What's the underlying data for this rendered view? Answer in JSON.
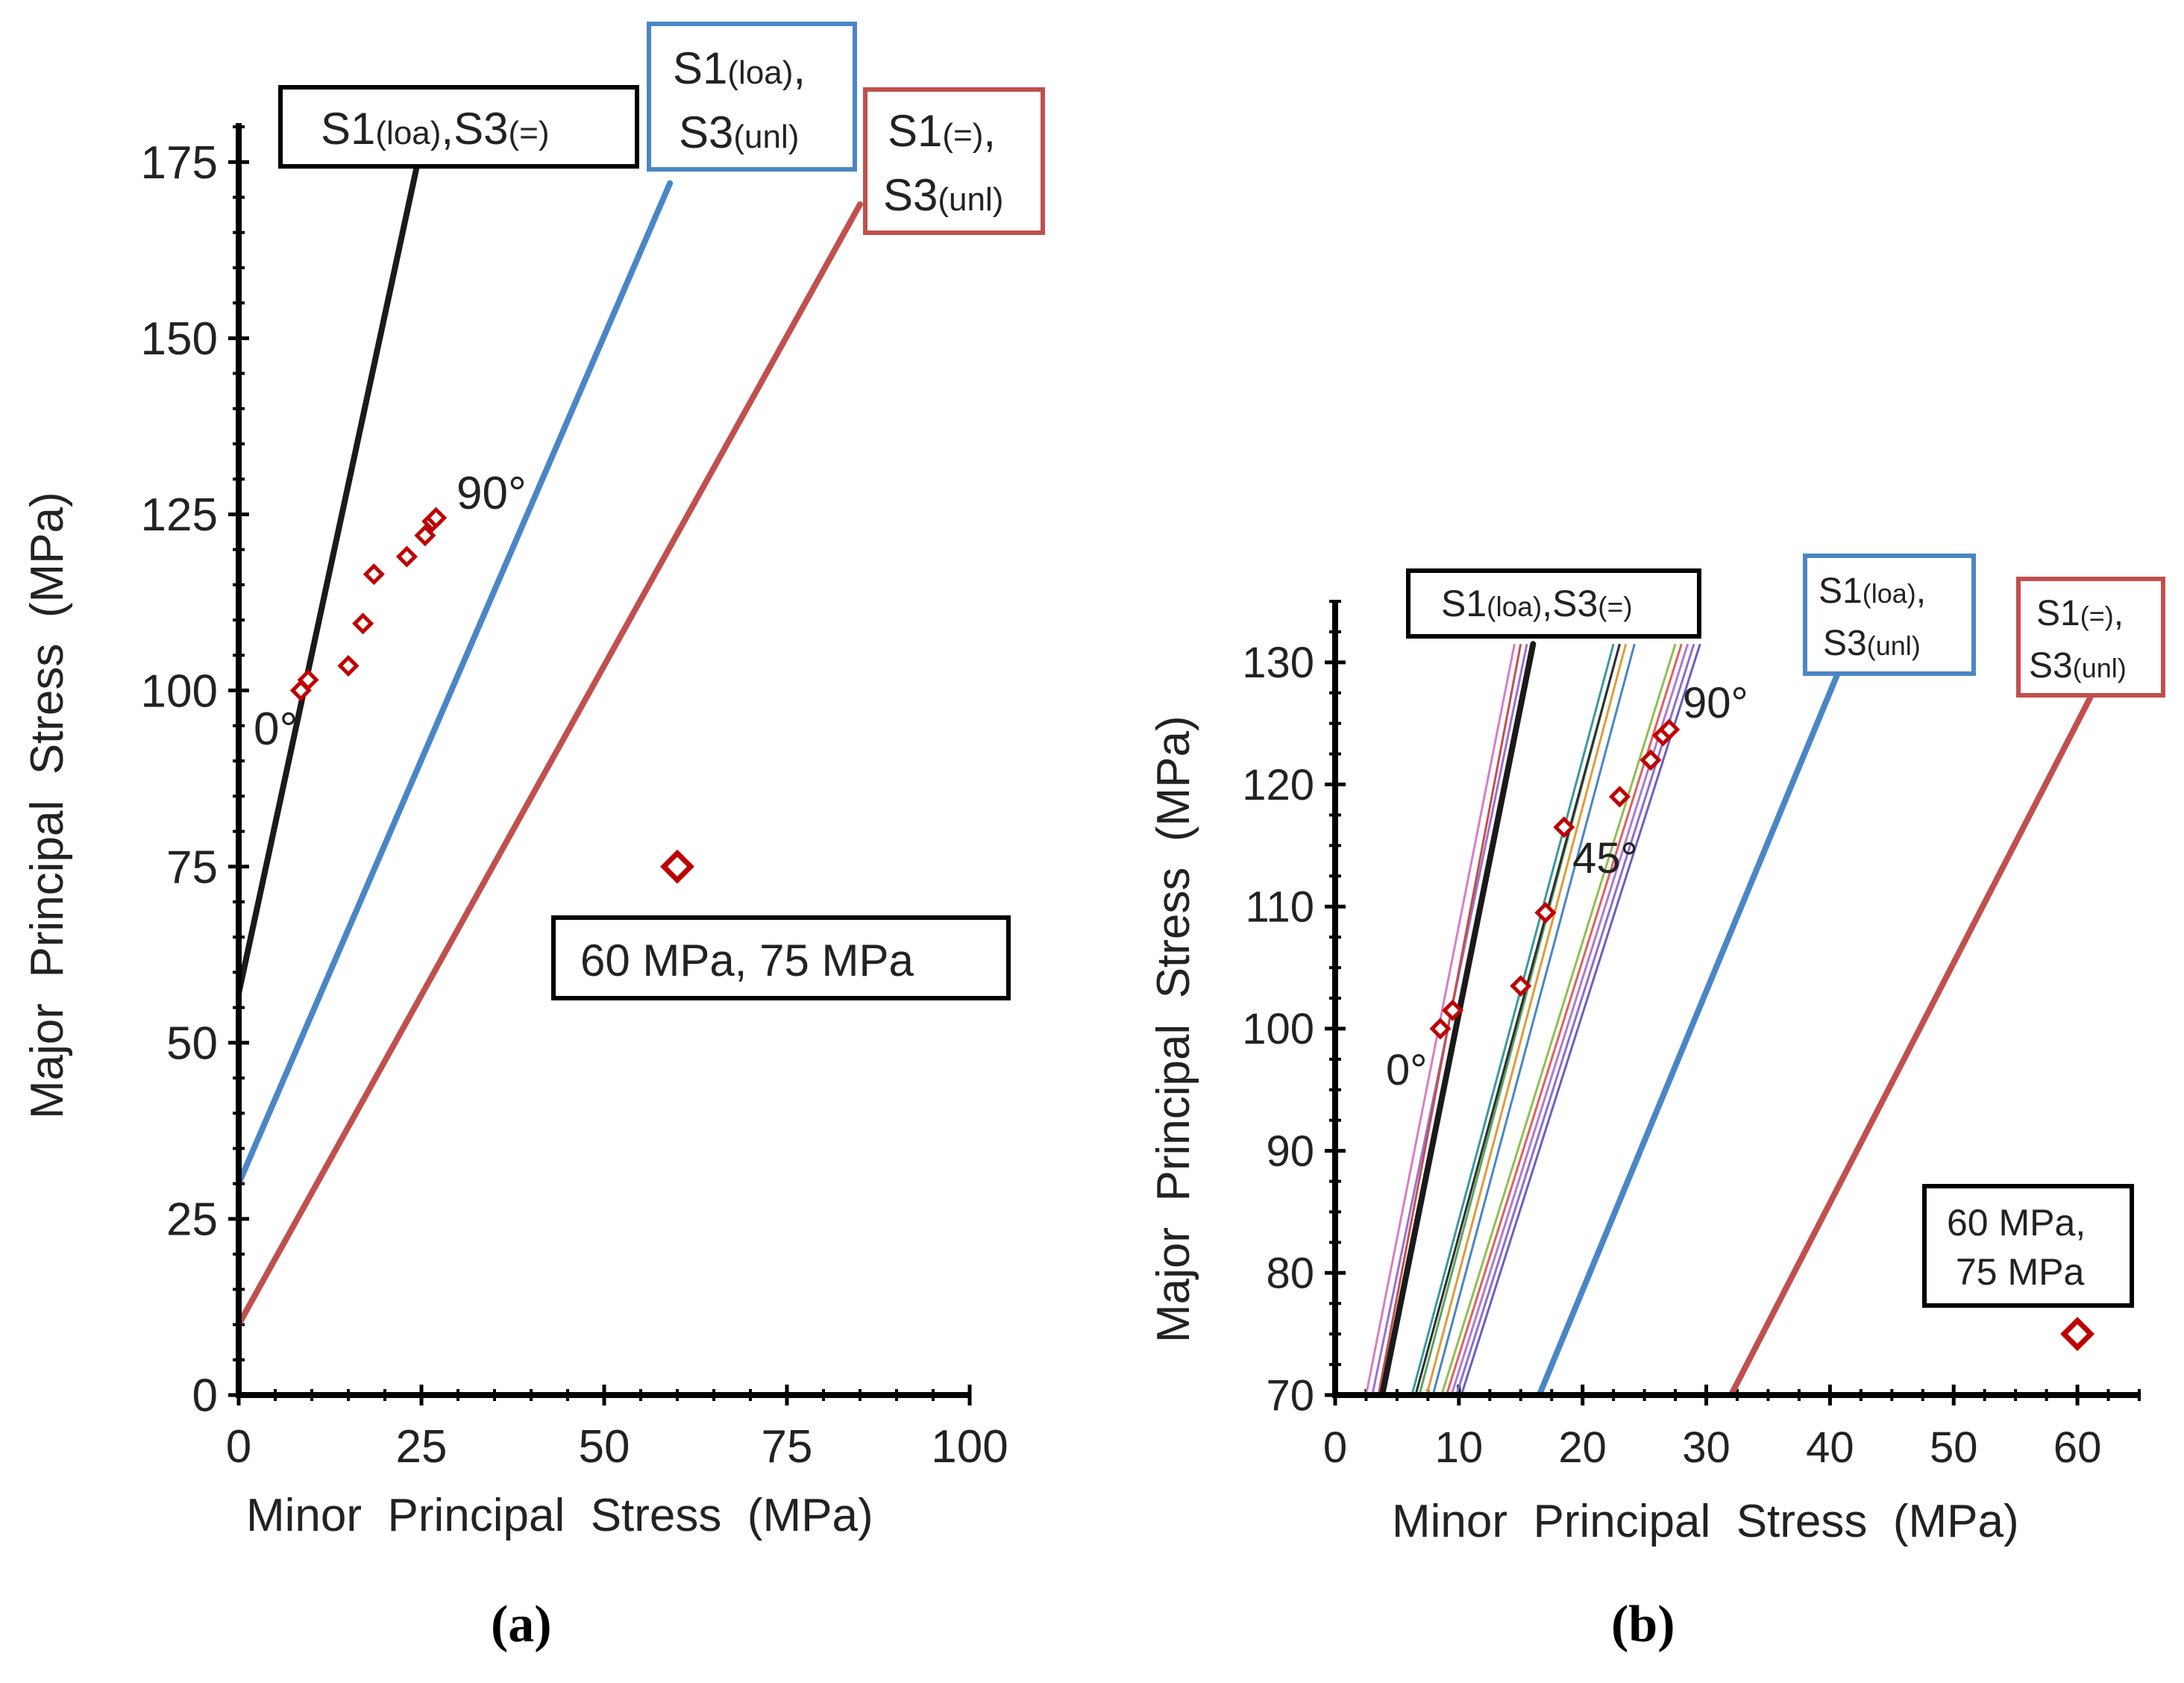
{
  "figure": {
    "label_a": "(a)",
    "label_b": "(b)"
  },
  "chart_data": [
    {
      "id": "a",
      "type": "line",
      "xlabel": "Minor  Principal  Stress  (MPa)",
      "ylabel": "Major  Principal  Stress  (MPa)",
      "xlim": [
        0,
        100
      ],
      "ylim": [
        0,
        180
      ],
      "xticks": [
        "0",
        "25",
        "50",
        "75",
        "100"
      ],
      "yticks": [
        "0",
        "25",
        "50",
        "75",
        "100",
        "125",
        "150",
        "175"
      ],
      "xtick_values": [
        0,
        25,
        50,
        75,
        100
      ],
      "ytick_values": [
        0,
        25,
        50,
        75,
        100,
        125,
        150,
        175
      ],
      "series": [
        {
          "name": "S1(loa),S3(=)",
          "color": "#1a1a1a",
          "x": [
            0,
            24.5
          ],
          "y": [
            57,
            175
          ]
        },
        {
          "name": "S1(loa), S3(unl)",
          "color": "#4a86c6",
          "x": [
            0,
            59
          ],
          "y": [
            30,
            172
          ]
        },
        {
          "name": "S1(=), S3(unl)",
          "color": "#c0504d",
          "x": [
            0,
            85
          ],
          "y": [
            10,
            169
          ]
        }
      ],
      "legend_boxes": [
        {
          "main1": "S1",
          "sub1": "(loa)",
          "main2": ",S3",
          "sub2": "(=)",
          "two_lines": false,
          "color": "#000000"
        },
        {
          "main1": "S1",
          "sub1": "(loa)",
          "line1_tail": ",",
          "main2": "S3",
          "sub2": "(unl)",
          "two_lines": true,
          "color": "#4a86c6"
        },
        {
          "main1": "S1",
          "sub1": "(=)",
          "line1_tail": ",",
          "main2": "S3",
          "sub2": "(unl)",
          "two_lines": true,
          "color": "#c0504d"
        }
      ],
      "points": {
        "color": "#c00000",
        "x": [
          8.5,
          9.5,
          15,
          17,
          18.5,
          23,
          25.5,
          26.5,
          27
        ],
        "y": [
          100,
          101.5,
          103.5,
          109.5,
          116.5,
          119,
          122,
          124,
          124.5
        ]
      },
      "special_point": {
        "x": 60,
        "y": 75,
        "label": "60 MPa, 75 MPa"
      },
      "annotations": [
        "0°",
        "90°"
      ]
    },
    {
      "id": "b",
      "type": "line",
      "xlabel": "Minor  Principal  Stress  (MPa)",
      "ylabel": "Major  Principal  Stress  (MPa)",
      "xlim": [
        0,
        65
      ],
      "ylim": [
        70,
        135
      ],
      "xticks": [
        "0",
        "10",
        "20",
        "30",
        "40",
        "50",
        "60"
      ],
      "yticks": [
        "70",
        "80",
        "90",
        "100",
        "110",
        "120",
        "130"
      ],
      "xtick_values": [
        0,
        10,
        20,
        30,
        40,
        50,
        60
      ],
      "ytick_values": [
        70,
        80,
        90,
        100,
        110,
        120,
        130
      ],
      "series": [
        {
          "name": "S1(loa),S3(=)",
          "color": "#1a1a1a",
          "x": [
            3.8,
            16
          ],
          "y": [
            70,
            131.5
          ]
        },
        {
          "name": "S1(loa), S3(unl)",
          "color": "#4a86c6",
          "x": [
            16.5,
            41
          ],
          "y": [
            70,
            130
          ]
        },
        {
          "name": "S1(=), S3(unl)",
          "color": "#c0504d",
          "x": [
            32,
            62
          ],
          "y": [
            70,
            129
          ]
        }
      ],
      "fan_lines": [
        {
          "color": "#d77ec7",
          "x": [
            2.5,
            14.5
          ],
          "y": [
            70,
            131.5
          ]
        },
        {
          "color": "#9e6fd0",
          "x": [
            3,
            15.5
          ],
          "y": [
            70,
            131.5
          ]
        },
        {
          "color": "#c0504d",
          "x": [
            3.5,
            15
          ],
          "y": [
            70,
            131.5
          ]
        },
        {
          "color": "#3a9a9a",
          "x": [
            6.2,
            22.5
          ],
          "y": [
            70,
            131.5
          ]
        },
        {
          "color": "#5ba55b",
          "x": [
            6.8,
            23
          ],
          "y": [
            70,
            131.5
          ]
        },
        {
          "color": "#e09b3a",
          "x": [
            7.4,
            23.5
          ],
          "y": [
            70,
            131.5
          ]
        },
        {
          "color": "#4a86c6",
          "x": [
            7.9,
            24.2
          ],
          "y": [
            70,
            131.5
          ]
        },
        {
          "color": "#2e2e2e",
          "x": [
            6.5,
            23
          ],
          "y": [
            70,
            131.5
          ]
        },
        {
          "color": "#8fbf4f",
          "x": [
            8.6,
            27.5
          ],
          "y": [
            70,
            131.5
          ]
        },
        {
          "color": "#e06060",
          "x": [
            9.0,
            28
          ],
          "y": [
            70,
            131.5
          ]
        },
        {
          "color": "#b07ad0",
          "x": [
            9.4,
            28.5
          ],
          "y": [
            70,
            131.5
          ]
        },
        {
          "color": "#8a6fd0",
          "x": [
            9.8,
            29
          ],
          "y": [
            70,
            131.5
          ]
        },
        {
          "color": "#6a5fc0",
          "x": [
            10.2,
            29.5
          ],
          "y": [
            70,
            131.5
          ]
        }
      ],
      "legend_boxes": [
        {
          "main1": "S1",
          "sub1": "(loa)",
          "main2": ",S3",
          "sub2": "(=)",
          "two_lines": false,
          "color": "#000000"
        },
        {
          "main1": "S1",
          "sub1": "(loa)",
          "line1_tail": ",",
          "main2": "S3",
          "sub2": "(unl)",
          "two_lines": true,
          "color": "#4a86c6"
        },
        {
          "main1": "S1",
          "sub1": "(=)",
          "line1_tail": ",",
          "main2": "S3",
          "sub2": "(unl)",
          "two_lines": true,
          "color": "#c0504d"
        }
      ],
      "points": {
        "color": "#c00000",
        "x": [
          8.5,
          9.5,
          15,
          17,
          18.5,
          23,
          25.5,
          26.5,
          27
        ],
        "y": [
          100,
          101.5,
          103.5,
          109.5,
          116.5,
          119,
          122,
          124,
          124.5
        ]
      },
      "special_point": {
        "x": 60,
        "y": 75,
        "label_line1": "60 MPa,",
        "label_line2": "75 MPa"
      },
      "annotations": [
        "0°",
        "45°",
        "90°"
      ]
    }
  ]
}
